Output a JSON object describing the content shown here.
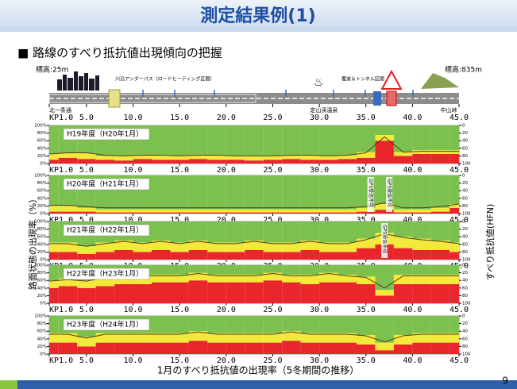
{
  "slide": {
    "title": "測定結果例(1)",
    "heading": "■ 路線のすべり抵抗値出現傾向の把握",
    "left_axis_label": "路面状態の出現率（%）",
    "right_axis_label": "すべり抵抗値(HFN)",
    "caption": "1月のすべり抵抗値の出現率（5冬期間の推移）",
    "page": "9"
  },
  "route": {
    "elev_left": "標高:25m",
    "elev_right": "標高:835m",
    "underpass": "川沿アンダーパス（ロードヒーティング区間）",
    "tunnel": "覆道＆トンネル区間",
    "places": [
      {
        "text": "北一条通",
        "x": 1
      },
      {
        "text": "定山渓温泉",
        "x": 29
      },
      {
        "text": "中山峠",
        "x": 43
      }
    ],
    "xlim": [
      1,
      45
    ],
    "xticks": [
      {
        "value": 1,
        "label": "KP1.0"
      },
      {
        "value": 5,
        "label": "5.0"
      },
      {
        "value": 10,
        "label": "10.0"
      },
      {
        "value": 15,
        "label": "15.0"
      },
      {
        "value": 20,
        "label": "20.0"
      },
      {
        "value": 25,
        "label": "25.0"
      },
      {
        "value": 30,
        "label": "30.0"
      },
      {
        "value": 35,
        "label": "35.0"
      },
      {
        "value": 40,
        "label": "40.0"
      },
      {
        "value": 45,
        "label": "45.0"
      }
    ]
  },
  "chart_data": [
    {
      "type": "area",
      "stacked": true,
      "label": "H19年度（H20年1月）",
      "x": [
        1,
        3,
        5,
        7,
        9,
        11,
        13,
        15,
        17,
        19,
        21,
        23,
        25,
        27,
        29,
        31,
        33,
        35,
        37,
        39,
        41,
        43,
        45
      ],
      "xlim": [
        1,
        45
      ],
      "xticks": [
        {
          "value": 1,
          "label": "KP1.0"
        },
        {
          "value": 5,
          "label": "5.0"
        },
        {
          "value": 10,
          "label": "10.0"
        },
        {
          "value": 15,
          "label": "15.0"
        },
        {
          "value": 20,
          "label": "20.0"
        },
        {
          "value": 25,
          "label": "25.0"
        },
        {
          "value": 30,
          "label": "30.0"
        },
        {
          "value": 35,
          "label": "35.0"
        },
        {
          "value": 40,
          "label": "40.0"
        },
        {
          "value": 45,
          "label": "45.0"
        }
      ],
      "ylim": [
        0,
        100
      ],
      "yticks": [
        {
          "value": 0,
          "label": "0%"
        },
        {
          "value": 20,
          "label": "20%"
        },
        {
          "value": 40,
          "label": "40%"
        },
        {
          "value": 60,
          "label": "60%"
        },
        {
          "value": 80,
          "label": "80%"
        },
        {
          "value": 100,
          "label": "100%"
        }
      ],
      "y2lim": [
        100,
        0
      ],
      "y2ticks": [
        0,
        20,
        40,
        60,
        80,
        100
      ],
      "series": [
        {
          "color": "#e8262c",
          "values": [
            10,
            15,
            12,
            10,
            8,
            12,
            10,
            10,
            12,
            10,
            10,
            8,
            10,
            12,
            10,
            10,
            12,
            15,
            60,
            20,
            25,
            25,
            25
          ]
        },
        {
          "color": "#f2e93a",
          "values": [
            15,
            12,
            15,
            10,
            12,
            10,
            12,
            10,
            10,
            12,
            10,
            12,
            10,
            10,
            12,
            10,
            10,
            15,
            15,
            10,
            10,
            10,
            10
          ]
        },
        {
          "color": "#7cc04e",
          "values": [
            75,
            73,
            73,
            80,
            80,
            78,
            78,
            80,
            78,
            78,
            80,
            80,
            80,
            78,
            78,
            80,
            78,
            70,
            25,
            70,
            65,
            65,
            65
          ]
        },
        {
          "type": "line",
          "axis": "y2",
          "color": "#5a3a1a",
          "values": [
            75,
            72,
            72,
            78,
            80,
            78,
            78,
            80,
            78,
            78,
            80,
            80,
            80,
            78,
            78,
            80,
            78,
            72,
            30,
            70,
            68,
            68,
            68
          ]
        }
      ]
    },
    {
      "type": "area",
      "stacked": true,
      "label": "H20年度（H21年1月）",
      "annotations": [
        {
          "text": "GPS受信不可",
          "x": 35.5
        },
        {
          "text": "GPS受信不可",
          "x": 37.5
        }
      ],
      "x": [
        1,
        3,
        5,
        7,
        9,
        11,
        13,
        15,
        17,
        19,
        21,
        23,
        25,
        27,
        29,
        31,
        33,
        35,
        37,
        39,
        41,
        43,
        45
      ],
      "xlim": [
        1,
        45
      ],
      "xticks": [
        {
          "value": 1,
          "label": "KP1.0"
        },
        {
          "value": 5,
          "label": "5.0"
        },
        {
          "value": 10,
          "label": "10.0"
        },
        {
          "value": 15,
          "label": "15.0"
        },
        {
          "value": 20,
          "label": "20.0"
        },
        {
          "value": 25,
          "label": "25.0"
        },
        {
          "value": 30,
          "label": "30.0"
        },
        {
          "value": 35,
          "label": "35.0"
        },
        {
          "value": 40,
          "label": "40.0"
        },
        {
          "value": 45,
          "label": "45.0"
        }
      ],
      "ylim": [
        0,
        100
      ],
      "yticks": [
        {
          "value": 0,
          "label": "0%"
        },
        {
          "value": 20,
          "label": "20%"
        },
        {
          "value": 40,
          "label": "40%"
        },
        {
          "value": 60,
          "label": "60%"
        },
        {
          "value": 80,
          "label": "80%"
        },
        {
          "value": 100,
          "label": "100%"
        }
      ],
      "y2lim": [
        100,
        0
      ],
      "y2ticks": [
        0,
        20,
        40,
        60,
        80,
        100
      ],
      "series": [
        {
          "color": "#e8262c",
          "values": [
            5,
            5,
            5,
            3,
            3,
            3,
            3,
            3,
            3,
            3,
            3,
            3,
            3,
            3,
            3,
            3,
            3,
            5,
            10,
            3,
            3,
            5,
            15
          ]
        },
        {
          "color": "#f2e93a",
          "values": [
            15,
            15,
            10,
            8,
            8,
            8,
            8,
            8,
            8,
            8,
            8,
            8,
            8,
            8,
            8,
            8,
            8,
            10,
            15,
            8,
            8,
            10,
            10
          ]
        },
        {
          "color": "#7cc04e",
          "values": [
            80,
            80,
            85,
            89,
            89,
            89,
            89,
            89,
            89,
            89,
            89,
            89,
            89,
            89,
            89,
            89,
            89,
            85,
            75,
            89,
            89,
            85,
            75
          ]
        },
        {
          "type": "line",
          "axis": "y2",
          "color": "#5a3a1a",
          "values": [
            78,
            78,
            82,
            85,
            85,
            85,
            85,
            85,
            85,
            85,
            85,
            85,
            85,
            85,
            85,
            85,
            85,
            82,
            72,
            85,
            85,
            82,
            75
          ]
        }
      ]
    },
    {
      "type": "area",
      "stacked": true,
      "label": "H21年度（H22年1月）",
      "annotations": [
        {
          "text": "GPS受信不可",
          "x": 37
        }
      ],
      "x": [
        1,
        3,
        5,
        7,
        9,
        11,
        13,
        15,
        17,
        19,
        21,
        23,
        25,
        27,
        29,
        31,
        33,
        35,
        37,
        39,
        41,
        43,
        45
      ],
      "xlim": [
        1,
        45
      ],
      "xticks": [
        {
          "value": 1,
          "label": "KP1.0"
        },
        {
          "value": 5,
          "label": "5.0"
        },
        {
          "value": 10,
          "label": "10.0"
        },
        {
          "value": 15,
          "label": "15.0"
        },
        {
          "value": 20,
          "label": "20.0"
        },
        {
          "value": 25,
          "label": "25.0"
        },
        {
          "value": 30,
          "label": "30.0"
        },
        {
          "value": 35,
          "label": "35.0"
        },
        {
          "value": 40,
          "label": "40.0"
        },
        {
          "value": 45,
          "label": "45.0"
        }
      ],
      "ylim": [
        0,
        100
      ],
      "yticks": [
        {
          "value": 0,
          "label": "0%"
        },
        {
          "value": 20,
          "label": "20%"
        },
        {
          "value": 40,
          "label": "40%"
        },
        {
          "value": 60,
          "label": "60%"
        },
        {
          "value": 80,
          "label": "80%"
        },
        {
          "value": 100,
          "label": "100%"
        }
      ],
      "y2lim": [
        100,
        0
      ],
      "y2ticks": [
        0,
        20,
        40,
        60,
        80,
        100
      ],
      "series": [
        {
          "color": "#e8262c",
          "values": [
            20,
            20,
            15,
            20,
            25,
            20,
            25,
            20,
            25,
            20,
            20,
            25,
            20,
            20,
            25,
            20,
            20,
            30,
            40,
            30,
            25,
            25,
            20
          ]
        },
        {
          "color": "#f2e93a",
          "values": [
            25,
            25,
            20,
            25,
            25,
            25,
            25,
            25,
            25,
            25,
            25,
            25,
            25,
            25,
            25,
            25,
            25,
            25,
            30,
            30,
            30,
            25,
            25
          ]
        },
        {
          "color": "#7cc04e",
          "values": [
            55,
            55,
            65,
            55,
            50,
            55,
            50,
            55,
            50,
            55,
            55,
            50,
            55,
            55,
            50,
            55,
            55,
            45,
            30,
            40,
            45,
            50,
            55
          ]
        },
        {
          "type": "line",
          "axis": "y2",
          "color": "#5a3a1a",
          "values": [
            58,
            58,
            65,
            58,
            52,
            58,
            52,
            58,
            52,
            58,
            58,
            52,
            58,
            58,
            52,
            58,
            58,
            48,
            32,
            42,
            48,
            52,
            58
          ]
        }
      ]
    },
    {
      "type": "area",
      "stacked": true,
      "label": "H22年度（H23年1月）",
      "x": [
        1,
        3,
        5,
        7,
        9,
        11,
        13,
        15,
        17,
        19,
        21,
        23,
        25,
        27,
        29,
        31,
        33,
        35,
        37,
        39,
        41,
        43,
        45
      ],
      "xlim": [
        1,
        45
      ],
      "xticks": [
        {
          "value": 1,
          "label": "KP1.0"
        },
        {
          "value": 5,
          "label": "5.0"
        },
        {
          "value": 10,
          "label": "10.0"
        },
        {
          "value": 15,
          "label": "15.0"
        },
        {
          "value": 20,
          "label": "20.0"
        },
        {
          "value": 25,
          "label": "25.0"
        },
        {
          "value": 30,
          "label": "30.0"
        },
        {
          "value": 35,
          "label": "35.0"
        },
        {
          "value": 40,
          "label": "40.0"
        },
        {
          "value": 45,
          "label": "45.0"
        }
      ],
      "ylim": [
        0,
        100
      ],
      "yticks": [
        {
          "value": 0,
          "label": "0%"
        },
        {
          "value": 20,
          "label": "20%"
        },
        {
          "value": 40,
          "label": "40%"
        },
        {
          "value": 60,
          "label": "60%"
        },
        {
          "value": 80,
          "label": "80%"
        },
        {
          "value": 100,
          "label": "100%"
        }
      ],
      "y2lim": [
        100,
        0
      ],
      "y2ticks": [
        0,
        20,
        40,
        60,
        80,
        100
      ],
      "series": [
        {
          "color": "#e8262c",
          "values": [
            40,
            45,
            40,
            45,
            50,
            50,
            55,
            55,
            60,
            55,
            55,
            55,
            60,
            55,
            50,
            55,
            55,
            50,
            20,
            50,
            50,
            50,
            50
          ]
        },
        {
          "color": "#f2e93a",
          "values": [
            20,
            20,
            20,
            25,
            25,
            25,
            20,
            20,
            20,
            20,
            20,
            20,
            20,
            20,
            25,
            25,
            20,
            20,
            15,
            25,
            25,
            25,
            25
          ]
        },
        {
          "color": "#7cc04e",
          "values": [
            40,
            35,
            40,
            30,
            25,
            25,
            25,
            25,
            20,
            25,
            25,
            25,
            20,
            25,
            25,
            20,
            25,
            30,
            65,
            25,
            25,
            25,
            25
          ]
        },
        {
          "type": "line",
          "axis": "y2",
          "color": "#5a3a1a",
          "values": [
            42,
            38,
            42,
            32,
            28,
            28,
            28,
            28,
            22,
            28,
            28,
            28,
            22,
            28,
            28,
            22,
            28,
            32,
            60,
            28,
            28,
            28,
            28
          ]
        }
      ]
    },
    {
      "type": "area",
      "stacked": true,
      "label": "H23年度（H24年1月）",
      "x": [
        1,
        3,
        5,
        7,
        9,
        11,
        13,
        15,
        17,
        19,
        21,
        23,
        25,
        27,
        29,
        31,
        33,
        35,
        37,
        39,
        41,
        43,
        45
      ],
      "xlim": [
        1,
        45
      ],
      "xticks": [
        {
          "value": 1,
          "label": "KP1.0"
        },
        {
          "value": 5,
          "label": "5.0"
        },
        {
          "value": 10,
          "label": "10.0"
        },
        {
          "value": 15,
          "label": "15.0"
        },
        {
          "value": 20,
          "label": "20.0"
        },
        {
          "value": 25,
          "label": "25.0"
        },
        {
          "value": 30,
          "label": "30.0"
        },
        {
          "value": 35,
          "label": "35.0"
        },
        {
          "value": 40,
          "label": "40.0"
        },
        {
          "value": 45,
          "label": "45.0"
        }
      ],
      "ylim": [
        0,
        100
      ],
      "yticks": [
        {
          "value": 0,
          "label": "0%"
        },
        {
          "value": 20,
          "label": "20%"
        },
        {
          "value": 40,
          "label": "40%"
        },
        {
          "value": 60,
          "label": "60%"
        },
        {
          "value": 80,
          "label": "80%"
        },
        {
          "value": 100,
          "label": "100%"
        }
      ],
      "y2lim": [
        100,
        0
      ],
      "y2ticks": [
        0,
        20,
        40,
        60,
        80,
        100
      ],
      "series": [
        {
          "color": "#e8262c",
          "values": [
            30,
            30,
            20,
            30,
            30,
            30,
            30,
            30,
            35,
            30,
            30,
            30,
            30,
            35,
            30,
            30,
            30,
            25,
            10,
            25,
            30,
            30,
            30
          ]
        },
        {
          "color": "#f2e93a",
          "values": [
            25,
            25,
            25,
            25,
            25,
            25,
            25,
            25,
            25,
            25,
            25,
            25,
            25,
            25,
            25,
            25,
            25,
            25,
            20,
            25,
            25,
            25,
            25
          ]
        },
        {
          "color": "#7cc04e",
          "values": [
            45,
            45,
            55,
            45,
            45,
            45,
            45,
            45,
            40,
            45,
            45,
            45,
            45,
            40,
            45,
            45,
            45,
            50,
            70,
            50,
            45,
            45,
            45
          ]
        },
        {
          "type": "line",
          "axis": "y2",
          "color": "#5a3a1a",
          "values": [
            48,
            48,
            58,
            48,
            48,
            48,
            48,
            48,
            42,
            48,
            48,
            48,
            48,
            42,
            48,
            48,
            48,
            52,
            68,
            52,
            48,
            48,
            48
          ]
        }
      ]
    }
  ]
}
